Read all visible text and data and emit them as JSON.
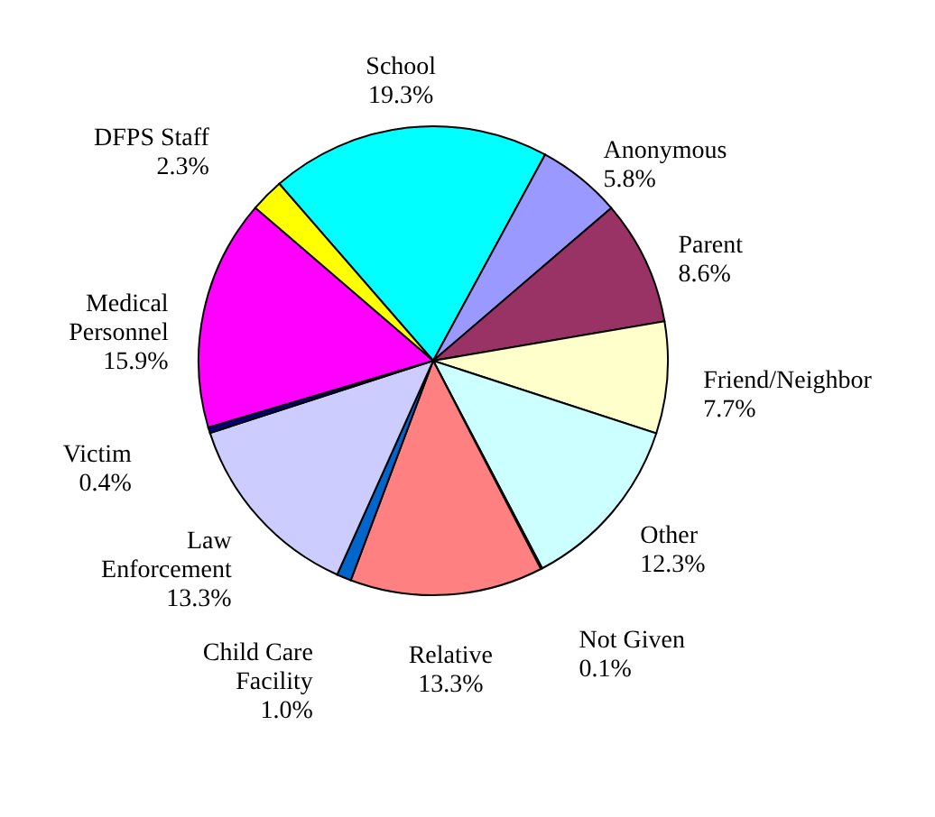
{
  "chart_data": {
    "type": "pie",
    "categories": [
      "School",
      "Anonymous",
      "Parent",
      "Friend/Neighbor",
      "Other",
      "Not Given",
      "Relative",
      "Child Care Facility",
      "Law Enforcement",
      "Victim",
      "Medical Personnel",
      "DFPS Staff"
    ],
    "values": [
      19.3,
      5.8,
      8.6,
      7.7,
      12.3,
      0.1,
      13.3,
      1.0,
      13.3,
      0.4,
      15.9,
      2.3
    ],
    "value_labels": [
      "19.3%",
      "5.8%",
      "8.6%",
      "7.7%",
      "12.3%",
      "0.1%",
      "13.3%",
      "1.0%",
      "13.3%",
      "0.4%",
      "15.9%",
      "2.3%"
    ],
    "colors": [
      "#00ffff",
      "#9999ff",
      "#993366",
      "#ffffcc",
      "#ccffff",
      "#000080",
      "#ff8080",
      "#0066cc",
      "#ccccff",
      "#000080",
      "#ff00ff",
      "#ffff00"
    ]
  }
}
